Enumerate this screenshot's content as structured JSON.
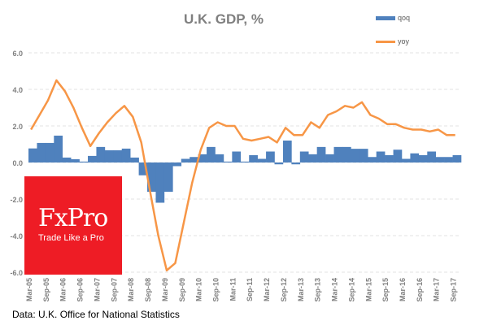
{
  "chart_data": {
    "type": "bar+line",
    "title": "U.K. GDP, %",
    "xlabel": "",
    "ylabel": "",
    "ylim": [
      -6,
      6
    ],
    "y_ticks": [
      "6.0",
      "4.0",
      "2.0",
      "0.0",
      "-2.0",
      "-4.0",
      "-6.0"
    ],
    "y_tick_values": [
      6,
      4,
      2,
      0,
      -2,
      -4,
      -6
    ],
    "x_tick_labels": [
      "Mar-05",
      "Sep-05",
      "Mar-06",
      "Sep-06",
      "Mar-07",
      "Sep-07",
      "Mar-08",
      "Sep-08",
      "Mar-09",
      "Sep-09",
      "Mar-10",
      "Sep-10",
      "Mar-11",
      "Sep-11",
      "Mar-12",
      "Sep-12",
      "Mar-13",
      "Sep-13",
      "Mar-14",
      "Sep-14",
      "Mar-15",
      "Sep-15",
      "Mar-16",
      "Sep-16",
      "Mar-17",
      "Sep-17"
    ],
    "quarters_count": 51,
    "grid": "horizontal dashed",
    "legend_placement": "top-right",
    "series": [
      {
        "name": "qoq",
        "type": "bar",
        "color": "#4f81bd",
        "values": [
          0.77,
          1.07,
          1.07,
          1.47,
          0.27,
          0.18,
          0.05,
          0.36,
          0.85,
          0.67,
          0.67,
          0.76,
          0.27,
          -0.7,
          -1.6,
          -2.2,
          -1.6,
          -0.2,
          0.2,
          0.3,
          0.45,
          0.85,
          0.45,
          0.05,
          0.6,
          0.05,
          0.4,
          0.2,
          0.6,
          -0.1,
          1.2,
          -0.1,
          0.6,
          0.45,
          0.85,
          0.45,
          0.85,
          0.85,
          0.75,
          0.75,
          0.3,
          0.6,
          0.4,
          0.7,
          0.2,
          0.5,
          0.4,
          0.6,
          0.3,
          0.3,
          0.4
        ]
      },
      {
        "name": "yoy",
        "type": "line",
        "color": "#f79646",
        "values": [
          1.8,
          2.6,
          3.4,
          4.5,
          3.9,
          3.0,
          1.9,
          0.9,
          1.6,
          2.2,
          2.7,
          3.1,
          2.5,
          1.1,
          -1.5,
          -4.0,
          -5.9,
          -5.5,
          -3.3,
          -1.1,
          0.7,
          1.9,
          2.2,
          2.0,
          2.0,
          1.3,
          1.2,
          1.3,
          1.4,
          1.1,
          1.9,
          1.5,
          1.5,
          2.2,
          1.9,
          2.6,
          2.8,
          3.1,
          3.0,
          3.3,
          2.6,
          2.4,
          2.1,
          2.1,
          1.9,
          1.8,
          1.8,
          1.7,
          1.8,
          1.5,
          1.5
        ]
      }
    ]
  },
  "logo": {
    "brand": "FxPro",
    "tagline": "Trade Like a Pro"
  },
  "source": "Data: U.K. Office for National Statistics"
}
